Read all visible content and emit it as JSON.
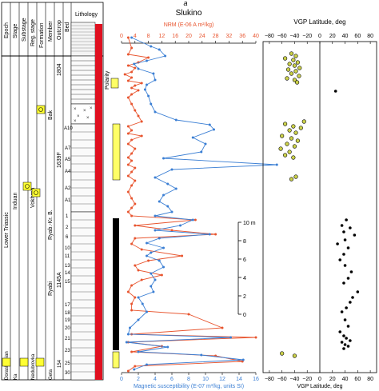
{
  "figure_label": "a",
  "column_header": {
    "epoch": "Epoch",
    "stage": "Stage",
    "substage": "Substage",
    "reg_stage": "Reg. stage",
    "formation": "Formation",
    "member": "Member",
    "outcrop": "Outcrop",
    "bed": "Bed",
    "lithology": "Lithology",
    "polarity": "Polarity"
  },
  "strat_labels": {
    "epoch": "Lower Triassic",
    "stage": "Induan",
    "reg_stage": "Vokhma",
    "member_bak": "Bak",
    "member_ryab_kr": "Ryab.-Kr. B.",
    "member_ryabi": "Ryabi",
    "bottom_substage": "Dorashamian",
    "bottom_reg": "Nedubrovka",
    "bottom_formation": "Geta",
    "bottom_misc": "Ka",
    "bottom_misc2": "Nedub"
  },
  "outcrops": [
    "1804",
    "1639F",
    "1145A",
    "154"
  ],
  "beds": [
    "A10",
    "A7",
    "A5",
    "A4",
    "A2",
    "A1",
    "1",
    "2",
    "6",
    "10",
    "11",
    "13",
    "14",
    "15",
    "17",
    "18",
    "19",
    "20",
    "21",
    "23",
    "25",
    "30"
  ],
  "scale_bar": {
    "label": "10 m",
    "ticks": [
      "8",
      "6",
      "4",
      "2",
      "0"
    ]
  },
  "colors": {
    "nrm": "#e8552f",
    "susceptibility": "#3b7fd4",
    "polarity_normal": "#ffff66",
    "polarity_reversed": "#000000",
    "vgp_normal_fill": "#000000",
    "vgp_reversed_fill": "#ccd24a",
    "lithology_red": "#e01020"
  },
  "chart_data": [
    {
      "type": "line",
      "title": "Slukino",
      "xlabel_top": "NRM (E-06 A m²/kg)",
      "xlabel_bottom": "Magnetic susceptibility (E-07 m³/kg, units SI)",
      "top_axis": {
        "ticks": [
          "0",
          "4",
          "8",
          "12",
          "16",
          "20",
          "24",
          "28",
          "32",
          "36",
          "40"
        ],
        "range": [
          0,
          40
        ]
      },
      "bottom_axis": {
        "ticks": [
          "0",
          "2",
          "4",
          "6",
          "8",
          "10",
          "12",
          "14",
          "16"
        ],
        "range": [
          0,
          16
        ]
      },
      "series": [
        {
          "name": "NRM",
          "axis": "top",
          "points": [
            [
              2,
              47
            ],
            [
              3,
              60
            ],
            [
              2,
              68
            ],
            [
              8,
              72
            ],
            [
              5,
              78
            ],
            [
              2,
              82
            ],
            [
              4,
              85
            ],
            [
              3,
              90
            ],
            [
              1,
              93
            ],
            [
              3,
              97
            ],
            [
              2,
              101
            ],
            [
              6,
              104
            ],
            [
              4,
              107
            ],
            [
              3,
              110
            ],
            [
              5,
              113
            ],
            [
              3,
              118
            ],
            [
              2,
              122
            ],
            [
              3,
              130
            ],
            [
              4,
              138
            ],
            [
              5,
              145
            ],
            [
              6,
              152
            ],
            [
              2,
              158
            ],
            [
              3,
              163
            ],
            [
              2,
              167
            ],
            [
              6,
              170
            ],
            [
              3,
              175
            ],
            [
              2,
              180
            ],
            [
              4,
              186
            ],
            [
              3,
              192
            ],
            [
              2,
              197
            ],
            [
              3,
              201
            ],
            [
              2,
              206
            ],
            [
              4,
              210
            ],
            [
              3,
              215
            ],
            [
              2,
              220
            ],
            [
              4,
              226
            ],
            [
              3,
              232
            ],
            [
              2,
              240
            ],
            [
              3,
              248
            ],
            [
              4,
              255
            ],
            [
              3,
              260
            ],
            [
              2,
              265
            ],
            [
              3,
              270
            ],
            [
              22,
              275
            ],
            [
              4,
              282
            ],
            [
              15,
              288
            ],
            [
              28,
              293
            ],
            [
              4,
              298
            ],
            [
              3,
              305
            ],
            [
              6,
              312
            ],
            [
              18,
              320
            ],
            [
              8,
              326
            ],
            [
              4,
              332
            ],
            [
              5,
              338
            ],
            [
              12,
              344
            ],
            [
              6,
              350
            ],
            [
              3,
              357
            ],
            [
              2,
              365
            ],
            [
              4,
              372
            ],
            [
              3,
              380
            ],
            [
              3,
              388
            ],
            [
              20,
              393
            ],
            [
              30,
              410
            ],
            [
              3,
              418
            ],
            [
              40,
              422
            ],
            [
              2,
              428
            ],
            [
              12,
              433
            ],
            [
              3,
              440
            ],
            [
              28,
              445
            ],
            [
              36,
              452
            ],
            [
              4,
              458
            ],
            [
              2,
              464
            ]
          ]
        },
        {
          "name": "Magnetic susceptibility",
          "axis": "bottom",
          "points": [
            [
              1.2,
              47
            ],
            [
              3.5,
              58
            ],
            [
              4.5,
              62
            ],
            [
              5.2,
              70
            ],
            [
              3.0,
              76
            ],
            [
              1.5,
              80
            ],
            [
              2.0,
              86
            ],
            [
              3.8,
              92
            ],
            [
              4.0,
              100
            ],
            [
              3.0,
              106
            ],
            [
              2.8,
              112
            ],
            [
              3.2,
              120
            ],
            [
              3.5,
              130
            ],
            [
              4.0,
              140
            ],
            [
              6.5,
              150
            ],
            [
              10.5,
              156
            ],
            [
              11.0,
              162
            ],
            [
              8.5,
              172
            ],
            [
              10.0,
              180
            ],
            [
              9.5,
              190
            ],
            [
              5.0,
              198
            ],
            [
              18.5,
              206
            ],
            [
              6.0,
              212
            ],
            [
              4.0,
              222
            ],
            [
              5.5,
              230
            ],
            [
              6.5,
              236
            ],
            [
              5.0,
              244
            ],
            [
              4.5,
              252
            ],
            [
              5.5,
              258
            ],
            [
              6.0,
              265
            ],
            [
              4.0,
              270
            ],
            [
              8.5,
              275
            ],
            [
              7.0,
              282
            ],
            [
              4.0,
              288
            ],
            [
              10.5,
              293
            ],
            [
              4.5,
              298
            ],
            [
              3.0,
              304
            ],
            [
              5.0,
              310
            ],
            [
              3.5,
              316
            ],
            [
              3.0,
              320
            ],
            [
              4.5,
              326
            ],
            [
              5.0,
              334
            ],
            [
              3.5,
              342
            ],
            [
              4.0,
              350
            ],
            [
              3.5,
              358
            ],
            [
              3.8,
              365
            ],
            [
              2.0,
              372
            ],
            [
              2.5,
              380
            ],
            [
              3.0,
              390
            ],
            [
              2.0,
              400
            ],
            [
              1.0,
              410
            ],
            [
              0.8,
              418
            ],
            [
              13.0,
              422
            ],
            [
              0.6,
              428
            ],
            [
              5.5,
              434
            ],
            [
              2.0,
              440
            ],
            [
              9.5,
              444
            ],
            [
              14.5,
              450
            ],
            [
              3.0,
              456
            ],
            [
              1.5,
              462
            ]
          ]
        }
      ]
    },
    {
      "type": "scatter",
      "title": "VGP Latitude, deg",
      "xlabel": "VGP Latitude, deg",
      "xticks": [
        "−80",
        "−60",
        "−40",
        "−20",
        "0",
        "20",
        "40",
        "60",
        "80"
      ],
      "xlim": [
        -90,
        90
      ],
      "series": [
        {
          "name": "reversed",
          "points": [
            [
              -45,
              67
            ],
            [
              -38,
              70
            ],
            [
              -55,
              73
            ],
            [
              -42,
              75
            ],
            [
              -35,
              78
            ],
            [
              -48,
              80
            ],
            [
              -40,
              82
            ],
            [
              -32,
              85
            ],
            [
              -50,
              87
            ],
            [
              -38,
              89
            ],
            [
              -45,
              92
            ],
            [
              -33,
              95
            ],
            [
              -52,
              98
            ],
            [
              -40,
              100
            ],
            [
              -36,
              103
            ],
            [
              -55,
              155
            ],
            [
              -42,
              158
            ],
            [
              -25,
              152
            ],
            [
              -30,
              160
            ],
            [
              -48,
              163
            ],
            [
              -38,
              166
            ],
            [
              -60,
              170
            ],
            [
              -45,
              173
            ],
            [
              -35,
              176
            ],
            [
              -52,
              180
            ],
            [
              -40,
              183
            ],
            [
              -62,
              186
            ],
            [
              -48,
              190
            ],
            [
              -55,
              194
            ],
            [
              -42,
              197
            ],
            [
              -38,
              221
            ],
            [
              -45,
              224
            ],
            [
              -60,
              442
            ],
            [
              -40,
              445
            ]
          ]
        },
        {
          "name": "normal",
          "points": [
            [
              25,
              114
            ],
            [
              42,
              275
            ],
            [
              35,
              282
            ],
            [
              48,
              285
            ],
            [
              38,
              290
            ],
            [
              55,
              294
            ],
            [
              40,
              300
            ],
            [
              28,
              305
            ],
            [
              45,
              310
            ],
            [
              38,
              318
            ],
            [
              32,
              325
            ],
            [
              40,
              332
            ],
            [
              50,
              340
            ],
            [
              45,
              348
            ],
            [
              38,
              354
            ],
            [
              60,
              365
            ],
            [
              52,
              372
            ],
            [
              48,
              378
            ],
            [
              42,
              385
            ],
            [
              35,
              390
            ],
            [
              40,
              400
            ],
            [
              45,
              408
            ],
            [
              32,
              415
            ],
            [
              38,
              420
            ],
            [
              42,
              423
            ],
            [
              48,
              426
            ],
            [
              35,
              428
            ],
            [
              40,
              431
            ],
            [
              45,
              433
            ],
            [
              38,
              436
            ]
          ]
        }
      ]
    }
  ]
}
